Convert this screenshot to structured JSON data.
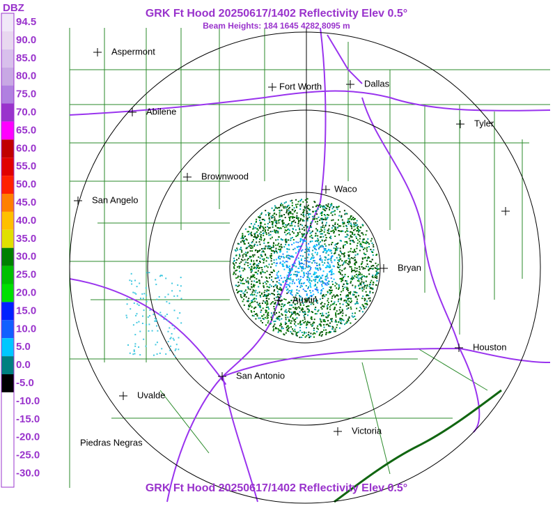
{
  "title": "GRK Ft Hood 20250617/1402 Reflectivity Elev 0.5°",
  "subtitle": "Beam Heights: 184 1645 4282 8095 m",
  "footer_title": "GRK Ft Hood 20250617/1402 Reflectivity Elev 0.5°",
  "legend": {
    "unit": "DBZ",
    "labels": [
      "94.5",
      "90.0",
      "85.0",
      "80.0",
      "75.0",
      "70.0",
      "65.0",
      "60.0",
      "55.0",
      "50.0",
      "45.0",
      "40.0",
      "35.0",
      "30.0",
      "25.0",
      "20.0",
      "15.0",
      "10.0",
      "5.0",
      "0.0",
      "-5.0",
      "-10.0",
      "-15.0",
      "-20.0",
      "-25.0",
      "-30.0"
    ]
  },
  "cities": [
    "Aspermont",
    "Fort Worth",
    "Dallas",
    "Abilene",
    "Tyler",
    "Brownwood",
    "Waco",
    "San Angelo",
    "Bryan",
    "Austin",
    "Houston",
    "San Antonio",
    "Uvalde",
    "Victoria",
    "Piedras Negras"
  ]
}
